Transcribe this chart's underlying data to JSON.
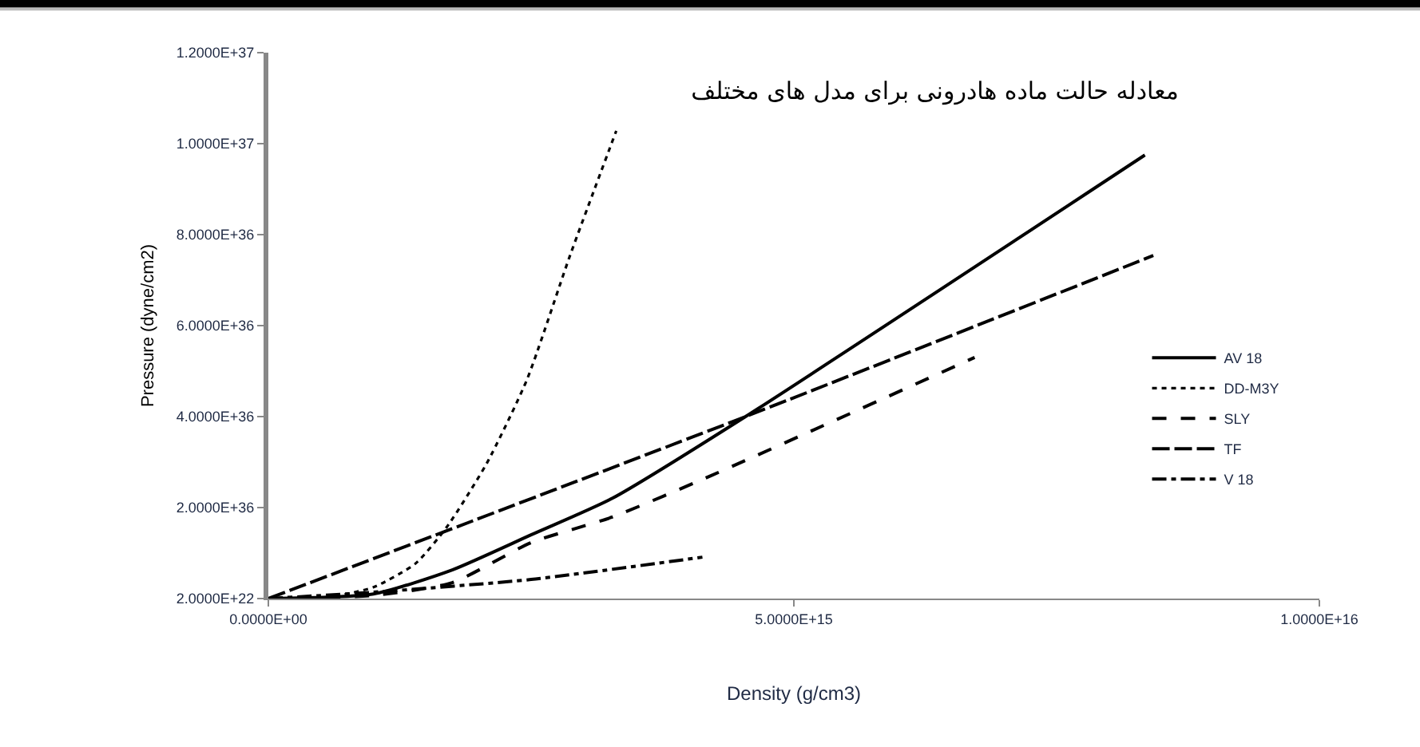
{
  "chart_data": {
    "type": "line",
    "title": "معادله حالت ماده هادرونی برای مدل های مختلف",
    "xlabel": "Density (g/cm3)",
    "ylabel": "Pressure (dyne/cm2)",
    "xlim": [
      0,
      1e+16
    ],
    "ylim": [
      2e+22,
      1.2e+37
    ],
    "xticks": [
      {
        "value": 0,
        "label": "0.0000E+00"
      },
      {
        "value": 5000000000000000.0,
        "label": "5.0000E+15"
      },
      {
        "value": 1e+16,
        "label": "1.0000E+16"
      }
    ],
    "yticks": [
      {
        "value": 2e+22,
        "label": "2.0000E+22"
      },
      {
        "value": 2e+36,
        "label": "2.0000E+36"
      },
      {
        "value": 4e+36,
        "label": "4.0000E+36"
      },
      {
        "value": 6e+36,
        "label": "6.0000E+36"
      },
      {
        "value": 8e+36,
        "label": "8.0000E+36"
      },
      {
        "value": 1e+37,
        "label": "1.0000E+37"
      },
      {
        "value": 1.2e+37,
        "label": "1.2000E+37"
      }
    ],
    "grid": false,
    "legend": "right",
    "marker": "none",
    "series": [
      {
        "name": "AV 18",
        "color": "#000000",
        "line_style": "solid",
        "x": [
          0,
          1000000000000000.0,
          1750000000000000.0,
          2500000000000000.0,
          3270000000000000.0,
          4540000000000000.0,
          8340000000000000.0
        ],
        "values": [
          2e+22,
          1e+35,
          6.3e+35,
          1.4e+36,
          2.2e+36,
          4e+36,
          9.75e+36
        ]
      },
      {
        "name": "DD-M3Y",
        "color": "#000000",
        "line_style": "dotted",
        "x": [
          0,
          500000000000000.0,
          1000000000000000.0,
          1400000000000000.0,
          1700000000000000.0,
          2080000000000000.0,
          2460000000000000.0,
          2870000000000000.0,
          3310000000000000.0
        ],
        "values": [
          2e+22,
          2e+22,
          2.5e+35,
          7.7e+35,
          1.58e+36,
          2.98e+36,
          4.81e+36,
          7.54e+36,
          1.028e+37
        ]
      },
      {
        "name": "SLY",
        "color": "#000000",
        "line_style": "dashed",
        "x": [
          0,
          1000000000000000.0,
          1750000000000000.0,
          2500000000000000.0,
          3270000000000000.0,
          4210000000000000.0,
          6720000000000000.0
        ],
        "values": [
          2e+22,
          7e+34,
          3.5e+35,
          1.23e+36,
          1.79e+36,
          2.7e+36,
          5.3e+36
        ]
      },
      {
        "name": "TF",
        "color": "#000000",
        "line_style": "longdash",
        "x": [
          0,
          4540000000000000.0,
          8420000000000000.0
        ],
        "values": [
          2e+22,
          4e+36,
          7.54e+36
        ]
      },
      {
        "name": "V 18",
        "color": "#000000",
        "line_style": "dashdot",
        "x": [
          0,
          1000000000000000.0,
          2500000000000000.0,
          4130000000000000.0
        ],
        "values": [
          2e+22,
          1.4e+35,
          4.2e+35,
          9.1e+35
        ]
      }
    ]
  }
}
